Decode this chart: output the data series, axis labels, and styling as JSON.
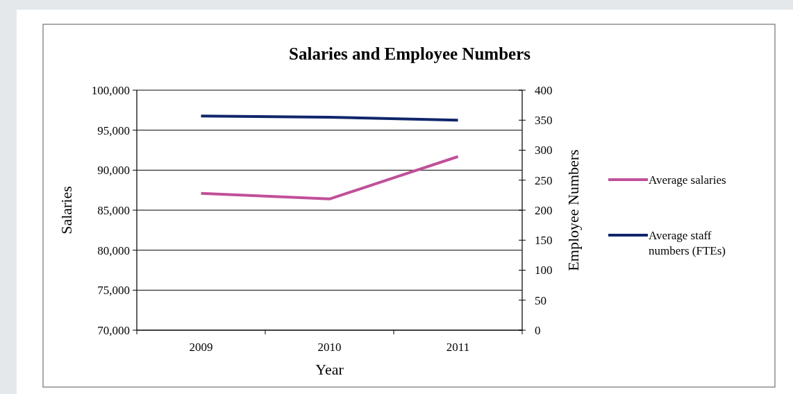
{
  "chart_data": {
    "type": "line",
    "title": "Salaries and Employee Numbers",
    "xlabel": "Year",
    "ylabel": "Salaries",
    "y2label": "Employee Numbers",
    "categories": [
      "2009",
      "2010",
      "2011"
    ],
    "series": [
      {
        "name": "Average salaries",
        "color": "#c0509a",
        "values": [
          87100,
          86400,
          91700
        ]
      },
      {
        "name": "Average staff numbers (FTEs)",
        "color": "#10266b",
        "values": [
          357,
          355,
          350
        ],
        "axis": "y2"
      }
    ],
    "ylim": [
      70000,
      100000
    ],
    "yticks": [
      {
        "value": 70000,
        "label": "70,000"
      },
      {
        "value": 75000,
        "label": "75,000"
      },
      {
        "value": 80000,
        "label": "80,000"
      },
      {
        "value": 85000,
        "label": "85,000"
      },
      {
        "value": 90000,
        "label": "90,000"
      },
      {
        "value": 95000,
        "label": "95,000"
      },
      {
        "value": 100000,
        "label": "100,000"
      }
    ],
    "y2lim": [
      0,
      400
    ],
    "y2ticks": [
      0,
      50,
      100,
      150,
      200,
      250,
      300,
      350,
      400
    ],
    "grid": "y",
    "legend": "right",
    "marker": "none",
    "line_style": "solid"
  }
}
